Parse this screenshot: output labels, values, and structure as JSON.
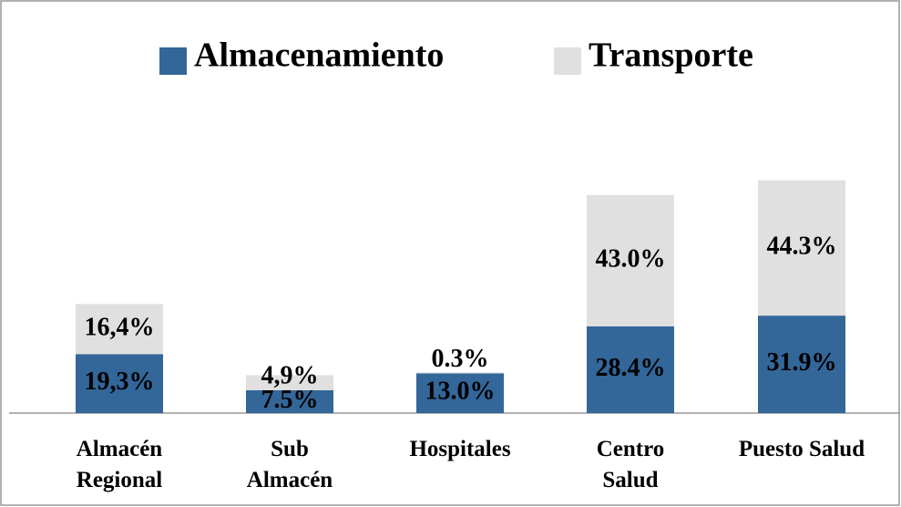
{
  "chart_data": {
    "type": "stacked-bar",
    "categories": [
      "Almacén Regional",
      "Sub Almacén",
      "Hospitales",
      "Centro Salud",
      "Puesto Salud"
    ],
    "series": [
      {
        "name": "Almacenamiento",
        "color": "#336699",
        "values": [
          19.3,
          7.5,
          13.0,
          28.4,
          31.9
        ],
        "value_labels": [
          "19,3%",
          "7.5%",
          "13.0%",
          "28.4%",
          "31.9%"
        ]
      },
      {
        "name": "Transporte",
        "color": "#e0e0e0",
        "values": [
          16.4,
          4.9,
          0.3,
          43.0,
          44.3
        ],
        "value_labels": [
          "16,4%",
          "4,9%",
          "0.3%",
          "43.0%",
          "44.3%"
        ]
      }
    ],
    "legend": "top"
  }
}
